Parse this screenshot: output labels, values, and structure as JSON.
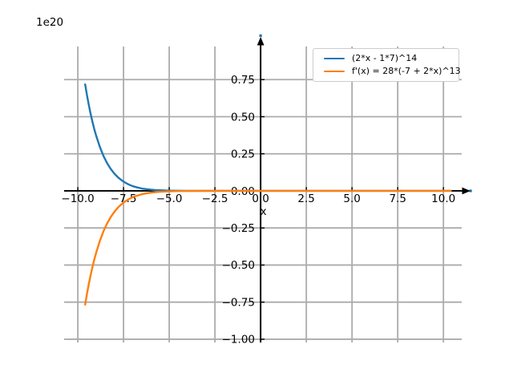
{
  "figure": {
    "offset_label": "1e20",
    "xaxis_label": "x",
    "background_color": "#ffffff",
    "axis_color": "#000000",
    "grid_color": "#ababab",
    "arrow_tip_accent_color": "#1f77b4"
  },
  "legend": {
    "position": "upper right",
    "entries": [
      {
        "label": "(2*x - 1*7)^14",
        "color": "#1f77b4"
      },
      {
        "label": "f'(x) = 28*(-7 + 2*x)^13",
        "color": "#ff7f0e"
      }
    ]
  },
  "chart_data": {
    "type": "line",
    "title": "",
    "xlabel": "x",
    "ylabel": "",
    "y_offset_multiplier": "1e20",
    "grid": true,
    "legend_position": "upper right",
    "xlim": [
      -10.75,
      11.0
    ],
    "ylim": [
      -1.022,
      0.973
    ],
    "xticks": [
      -10.0,
      -7.5,
      -5.0,
      -2.5,
      0.0,
      2.5,
      5.0,
      7.5,
      10.0
    ],
    "xtick_labels": [
      "−10.0",
      "−7.5",
      "−5.0",
      "−2.5",
      "0.0",
      "2.5",
      "5.0",
      "7.5",
      "10.0"
    ],
    "yticks": [
      0.75,
      0.5,
      0.25,
      0.0,
      -0.25,
      -0.5,
      -0.75,
      -1.0
    ],
    "ytick_labels": [
      "0.75",
      "0.50",
      "0.25",
      "0.00",
      "−0.25",
      "−0.50",
      "−0.75",
      "−1.00"
    ],
    "x": [
      -9.6,
      -9.5,
      -9.4,
      -9.3,
      -9.2,
      -9.1,
      -9.0,
      -8.8,
      -8.6,
      -8.4,
      -8.2,
      -8.0,
      -7.8,
      -7.6,
      -7.4,
      -7.2,
      -7.0,
      -6.75,
      -6.5,
      -6.25,
      -6.0,
      -5.75,
      -5.5,
      -5.0,
      -4.5,
      -4.0,
      -3.5,
      -3.0,
      -2.0,
      -1.0,
      0.0,
      1.0,
      2.0,
      3.0,
      4.0,
      5.0,
      6.0,
      7.0,
      8.0,
      9.0,
      10.0,
      10.4
    ],
    "series": [
      {
        "name": "(2*x - 1*7)^14",
        "color": "#1f77b4",
        "values": [
          0.718,
          0.645,
          0.579,
          0.519,
          0.465,
          0.416,
          0.373,
          0.298,
          0.236,
          0.187,
          0.148,
          0.116,
          0.091,
          0.071,
          0.055,
          0.042,
          0.032,
          0.023,
          0.016,
          0.0115,
          0.008,
          0.0055,
          0.004,
          0.0017,
          0.0007,
          0.0003,
          0.0001,
          0,
          0,
          0,
          0,
          0,
          0,
          0,
          0,
          0,
          0,
          0,
          0,
          0,
          0,
          0
        ]
      },
      {
        "name": "f'(x) = 28*(-7 + 2*x)^13",
        "color": "#ff7f0e",
        "values": [
          -0.767,
          -0.694,
          -0.628,
          -0.568,
          -0.513,
          -0.463,
          -0.418,
          -0.339,
          -0.273,
          -0.22,
          -0.176,
          -0.141,
          -0.112,
          -0.089,
          -0.07,
          -0.055,
          -0.043,
          -0.032,
          -0.023,
          -0.0165,
          -0.012,
          -0.0083,
          -0.006,
          -0.003,
          -0.0013,
          -0.0005,
          -0.0002,
          -0.0001,
          0,
          0,
          0,
          0,
          0,
          0,
          0,
          0,
          0,
          0,
          0,
          0,
          0,
          0.0002
        ]
      }
    ]
  }
}
